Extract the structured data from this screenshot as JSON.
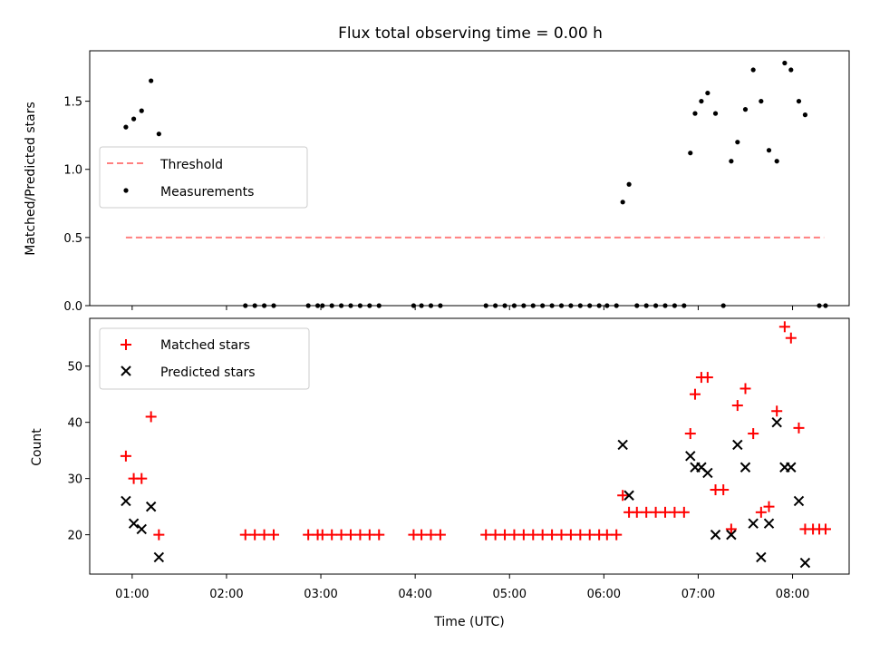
{
  "chart_data": [
    {
      "type": "scatter",
      "title": "Flux total observing time = 0.00 h",
      "xlabel": "",
      "ylabel": "Matched/Predicted stars",
      "xlim": [
        "00:33",
        "08:36"
      ],
      "ylim": [
        0,
        1.87
      ],
      "yticks": [
        "0.0",
        "0.5",
        "1.0",
        "1.5"
      ],
      "ytick_values": [
        0,
        0.5,
        1.0,
        1.5
      ],
      "legend_position": "upper-left",
      "series": [
        {
          "name": "Threshold",
          "style": "dashed-line",
          "color": "#ff8080",
          "x": [
            "00:56",
            "08:20"
          ],
          "y": [
            0.5,
            0.5
          ]
        },
        {
          "name": "Measurements",
          "style": "dot",
          "color": "#000000",
          "points": [
            [
              "00:56",
              1.31
            ],
            [
              "01:01",
              1.37
            ],
            [
              "01:06",
              1.43
            ],
            [
              "01:12",
              1.65
            ],
            [
              "01:17",
              1.26
            ],
            [
              "02:12",
              0.0
            ],
            [
              "02:18",
              0.0
            ],
            [
              "02:24",
              0.0
            ],
            [
              "02:30",
              0.0
            ],
            [
              "02:52",
              0.0
            ],
            [
              "02:58",
              0.0
            ],
            [
              "03:01",
              0.0
            ],
            [
              "03:07",
              0.0
            ],
            [
              "03:13",
              0.0
            ],
            [
              "03:19",
              0.0
            ],
            [
              "03:25",
              0.0
            ],
            [
              "03:31",
              0.0
            ],
            [
              "03:37",
              0.0
            ],
            [
              "03:59",
              0.0
            ],
            [
              "04:04",
              0.0
            ],
            [
              "04:10",
              0.0
            ],
            [
              "04:16",
              0.0
            ],
            [
              "04:45",
              0.0
            ],
            [
              "04:51",
              0.0
            ],
            [
              "04:57",
              0.0
            ],
            [
              "05:03",
              0.0
            ],
            [
              "05:09",
              0.0
            ],
            [
              "05:15",
              0.0
            ],
            [
              "05:21",
              0.0
            ],
            [
              "05:27",
              0.0
            ],
            [
              "05:33",
              0.0
            ],
            [
              "05:39",
              0.0
            ],
            [
              "05:45",
              0.0
            ],
            [
              "05:51",
              0.0
            ],
            [
              "05:57",
              0.0
            ],
            [
              "06:02",
              0.0
            ],
            [
              "06:08",
              0.0
            ],
            [
              "06:12",
              0.76
            ],
            [
              "06:16",
              0.89
            ],
            [
              "06:21",
              0.0
            ],
            [
              "06:27",
              0.0
            ],
            [
              "06:33",
              0.0
            ],
            [
              "06:39",
              0.0
            ],
            [
              "06:45",
              0.0
            ],
            [
              "06:51",
              0.0
            ],
            [
              "06:55",
              1.12
            ],
            [
              "06:58",
              1.41
            ],
            [
              "07:02",
              1.5
            ],
            [
              "07:06",
              1.56
            ],
            [
              "07:11",
              1.41
            ],
            [
              "07:16",
              0.0
            ],
            [
              "07:21",
              1.06
            ],
            [
              "07:25",
              1.2
            ],
            [
              "07:30",
              1.44
            ],
            [
              "07:35",
              1.73
            ],
            [
              "07:40",
              1.5
            ],
            [
              "07:45",
              1.14
            ],
            [
              "07:50",
              1.06
            ],
            [
              "07:55",
              1.78
            ],
            [
              "07:59",
              1.73
            ],
            [
              "08:04",
              1.5
            ],
            [
              "08:08",
              1.4
            ],
            [
              "08:17",
              0.0
            ],
            [
              "08:21",
              0.0
            ]
          ]
        }
      ]
    },
    {
      "type": "scatter",
      "title": "",
      "xlabel": "Time (UTC)",
      "ylabel": "Count",
      "xlim": [
        "00:33",
        "08:36"
      ],
      "ylim": [
        13,
        58.5
      ],
      "yticks": [
        "20",
        "30",
        "40",
        "50"
      ],
      "ytick_values": [
        20,
        30,
        40,
        50
      ],
      "xticks": [
        "01:00",
        "02:00",
        "03:00",
        "04:00",
        "05:00",
        "06:00",
        "07:00",
        "08:00"
      ],
      "legend_position": "upper-left",
      "series": [
        {
          "name": "Matched stars",
          "marker": "plus",
          "color": "#ff0000",
          "points": [
            [
              "00:56",
              34
            ],
            [
              "01:01",
              30
            ],
            [
              "01:06",
              30
            ],
            [
              "01:12",
              41
            ],
            [
              "01:17",
              20
            ],
            [
              "02:12",
              20
            ],
            [
              "02:18",
              20
            ],
            [
              "02:24",
              20
            ],
            [
              "02:30",
              20
            ],
            [
              "02:52",
              20
            ],
            [
              "02:58",
              20
            ],
            [
              "03:01",
              20
            ],
            [
              "03:07",
              20
            ],
            [
              "03:13",
              20
            ],
            [
              "03:19",
              20
            ],
            [
              "03:25",
              20
            ],
            [
              "03:31",
              20
            ],
            [
              "03:37",
              20
            ],
            [
              "03:59",
              20
            ],
            [
              "04:04",
              20
            ],
            [
              "04:10",
              20
            ],
            [
              "04:16",
              20
            ],
            [
              "04:45",
              20
            ],
            [
              "04:51",
              20
            ],
            [
              "04:57",
              20
            ],
            [
              "05:03",
              20
            ],
            [
              "05:09",
              20
            ],
            [
              "05:15",
              20
            ],
            [
              "05:21",
              20
            ],
            [
              "05:27",
              20
            ],
            [
              "05:33",
              20
            ],
            [
              "05:39",
              20
            ],
            [
              "05:45",
              20
            ],
            [
              "05:51",
              20
            ],
            [
              "05:57",
              20
            ],
            [
              "06:02",
              20
            ],
            [
              "06:08",
              20
            ],
            [
              "06:12",
              27
            ],
            [
              "06:16",
              24
            ],
            [
              "06:21",
              24
            ],
            [
              "06:27",
              24
            ],
            [
              "06:33",
              24
            ],
            [
              "06:39",
              24
            ],
            [
              "06:45",
              24
            ],
            [
              "06:51",
              24
            ],
            [
              "06:55",
              38
            ],
            [
              "06:58",
              45
            ],
            [
              "07:02",
              48
            ],
            [
              "07:06",
              48
            ],
            [
              "07:11",
              28
            ],
            [
              "07:16",
              28
            ],
            [
              "07:21",
              21
            ],
            [
              "07:25",
              43
            ],
            [
              "07:30",
              46
            ],
            [
              "07:35",
              38
            ],
            [
              "07:40",
              24
            ],
            [
              "07:45",
              25
            ],
            [
              "07:50",
              42
            ],
            [
              "07:55",
              57
            ],
            [
              "07:59",
              55
            ],
            [
              "08:04",
              39
            ],
            [
              "08:08",
              21
            ],
            [
              "08:13",
              21
            ],
            [
              "08:17",
              21
            ],
            [
              "08:21",
              21
            ]
          ]
        },
        {
          "name": "Predicted stars",
          "marker": "x",
          "color": "#000000",
          "points": [
            [
              "00:56",
              26
            ],
            [
              "01:01",
              22
            ],
            [
              "01:06",
              21
            ],
            [
              "01:12",
              25
            ],
            [
              "01:17",
              16
            ],
            [
              "06:12",
              36
            ],
            [
              "06:16",
              27
            ],
            [
              "06:55",
              34
            ],
            [
              "06:58",
              32
            ],
            [
              "07:02",
              32
            ],
            [
              "07:06",
              31
            ],
            [
              "07:11",
              20
            ],
            [
              "07:21",
              20
            ],
            [
              "07:25",
              36
            ],
            [
              "07:30",
              32
            ],
            [
              "07:35",
              22
            ],
            [
              "07:40",
              16
            ],
            [
              "07:45",
              22
            ],
            [
              "07:50",
              40
            ],
            [
              "07:55",
              32
            ],
            [
              "07:59",
              32
            ],
            [
              "08:04",
              26
            ],
            [
              "08:08",
              15
            ]
          ]
        }
      ]
    }
  ]
}
